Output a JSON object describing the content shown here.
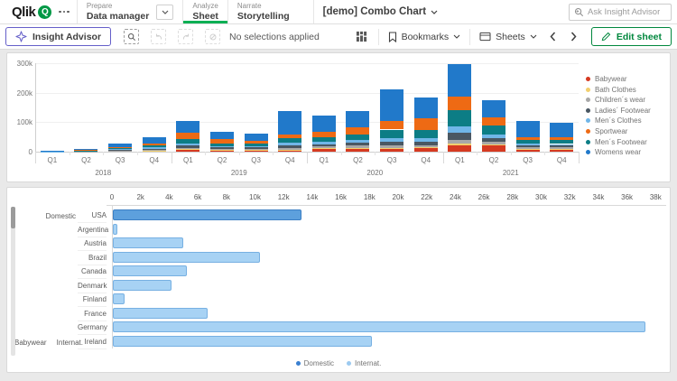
{
  "header": {
    "logo_text": "Qlik",
    "logo_q": "Q",
    "nav": [
      {
        "section": "Prepare",
        "item": "Data manager"
      },
      {
        "section": "Analyze",
        "item": "Sheet"
      },
      {
        "section": "Narrate",
        "item": "Storytelling"
      }
    ],
    "app_title": "[demo] Combo Chart",
    "search_placeholder": "Ask Insight Advisor"
  },
  "toolbar": {
    "insight_advisor": "Insight Advisor",
    "selections_status": "No selections applied",
    "bookmarks": "Bookmarks",
    "sheets": "Sheets",
    "edit_sheet": "Edit sheet"
  },
  "colors": {
    "qlik_green": "#009845",
    "tab_underline_green": "#0aaf54",
    "edit_green": "#00873d",
    "insight_purple": "#655fc9",
    "page_bg": "#e9e9e9",
    "card_border": "#d9d9d9",
    "text_primary": "#404040",
    "text_secondary": "#8c8c8c"
  },
  "chart_data": [
    {
      "type": "bar",
      "stacked": true,
      "value_unit": "thousands",
      "categories": [
        "Q1",
        "Q2",
        "Q3",
        "Q4",
        "Q1",
        "Q2",
        "Q3",
        "Q4",
        "Q1",
        "Q2",
        "Q3",
        "Q4",
        "Q1",
        "Q2",
        "Q3",
        "Q4"
      ],
      "year_groups": [
        "2018",
        "2019",
        "2020",
        "2021"
      ],
      "ylim": [
        0,
        300
      ],
      "yticks": [
        {
          "label": "0",
          "value": 0
        },
        {
          "label": "100k",
          "value": 100
        },
        {
          "label": "200k",
          "value": 200
        },
        {
          "label": "300k",
          "value": 300
        }
      ],
      "series": [
        {
          "name": "Babywear",
          "color": "#d63a21",
          "values": [
            0.3,
            0.6,
            2,
            3,
            6,
            4,
            4,
            5,
            8,
            10,
            10,
            11,
            22,
            20,
            8,
            7
          ]
        },
        {
          "name": "Bath Clothes",
          "color": "#f2cf6e",
          "values": [
            0.2,
            0.3,
            0.5,
            1,
            2,
            1.5,
            1.5,
            2,
            3,
            3,
            3,
            3,
            6,
            4,
            2,
            2
          ]
        },
        {
          "name": "Children´s wear",
          "color": "#a8a8a8",
          "values": [
            0.3,
            0.6,
            1.5,
            2.5,
            5,
            3.5,
            3.5,
            6,
            6,
            7,
            8,
            8,
            12,
            9,
            5,
            5
          ]
        },
        {
          "name": "Ladies´ Footwear",
          "color": "#4a5762",
          "values": [
            0.3,
            0.8,
            2,
            4,
            8,
            5,
            5,
            9,
            9,
            10,
            12,
            12,
            25,
            13,
            7,
            6
          ]
        },
        {
          "name": "Men´s Clothes",
          "color": "#70b6e8",
          "values": [
            0.3,
            0.8,
            2,
            4,
            8,
            5,
            5,
            9,
            9,
            10,
            12,
            12,
            22,
            12,
            7,
            6
          ]
        },
        {
          "name": "Men´s Footwear",
          "color": "#0c7d85",
          "values": [
            0.3,
            1,
            3,
            6,
            14,
            9,
            8,
            16,
            14,
            17,
            30,
            28,
            55,
            30,
            12,
            14
          ]
        },
        {
          "name": "Sportwear",
          "color": "#ee6a14",
          "values": [
            1,
            2.4,
            5,
            8,
            22,
            14,
            11,
            12,
            18,
            25,
            28,
            40,
            45,
            27,
            8,
            8
          ]
        },
        {
          "name": "Womens wear",
          "color": "#2179ca",
          "values": [
            0.3,
            1.5,
            11,
            19.5,
            40,
            25,
            22,
            78,
            55,
            55,
            109,
            71,
            110,
            60,
            56,
            49
          ]
        }
      ],
      "legend": [
        {
          "label": "Babywear",
          "color": "#d63a21"
        },
        {
          "label": "Bath Clothes",
          "color": "#f2cf6e"
        },
        {
          "label": "Children´s wear",
          "color": "#a8a8a8"
        },
        {
          "label": "Ladies´ Footwear",
          "color": "#4a5762"
        },
        {
          "label": "Men´s Clothes",
          "color": "#70b6e8"
        },
        {
          "label": "Sportwear",
          "color": "#ee6a14"
        },
        {
          "label": "Men´s Footwear",
          "color": "#0c7d85"
        },
        {
          "label": "Womens wear",
          "color": "#2179ca"
        }
      ],
      "legend_position": "right"
    },
    {
      "type": "bar",
      "orientation": "horizontal",
      "value_unit": "thousands",
      "xlim": [
        0,
        38
      ],
      "xticks": [
        "0",
        "2k",
        "4k",
        "6k",
        "8k",
        "10k",
        "12k",
        "14k",
        "16k",
        "18k",
        "20k",
        "22k",
        "24k",
        "26k",
        "28k",
        "30k",
        "32k",
        "34k",
        "36k",
        "38k"
      ],
      "group_labels": {
        "dimension": "Babywear",
        "first_row_group": "Domestic",
        "last_row_group": "Internat."
      },
      "rows": [
        {
          "label": "USA",
          "value": 13.2,
          "series": "Domestic"
        },
        {
          "label": "Argentina",
          "value": 0.3,
          "series": "Internat."
        },
        {
          "label": "Austria",
          "value": 4.9,
          "series": "Internat."
        },
        {
          "label": "Brazil",
          "value": 10.3,
          "series": "Internat."
        },
        {
          "label": "Canada",
          "value": 5.2,
          "series": "Internat."
        },
        {
          "label": "Denmark",
          "value": 4.1,
          "series": "Internat."
        },
        {
          "label": "Finland",
          "value": 0.8,
          "series": "Internat."
        },
        {
          "label": "France",
          "value": 6.6,
          "series": "Internat."
        },
        {
          "label": "Germany",
          "value": 37.2,
          "series": "Internat."
        },
        {
          "label": "Ireland",
          "value": 18.1,
          "series": "Internat."
        }
      ],
      "series_styles": {
        "Domestic": {
          "fill": "#5da0dd",
          "border": "#3c7fc4"
        },
        "Internat.": {
          "fill": "#a7d2f4",
          "border": "#77b0e2"
        }
      },
      "legend": [
        {
          "label": "Domestic",
          "color": "#3a7fd0"
        },
        {
          "label": "Internat.",
          "color": "#9ccaf0"
        }
      ],
      "legend_position": "bottom"
    }
  ]
}
